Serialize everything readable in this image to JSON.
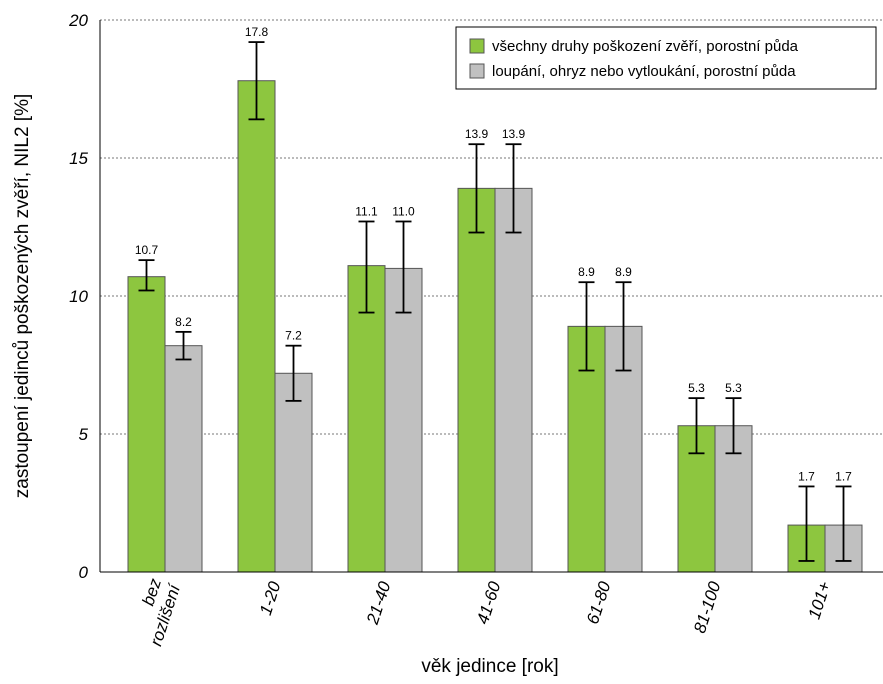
{
  "chart_data": {
    "type": "bar",
    "categories": [
      [
        "bez",
        "rozlišení"
      ],
      [
        "1-20"
      ],
      [
        "21-40"
      ],
      [
        "41-60"
      ],
      [
        "61-80"
      ],
      [
        "81-100"
      ],
      [
        "101+"
      ]
    ],
    "series": [
      {
        "name": "všechny druhy poškození zvěří, porostní půda",
        "color": "#8dc63f",
        "values": [
          10.7,
          17.8,
          11.1,
          13.9,
          8.9,
          5.3,
          1.7
        ],
        "labels": [
          "10.7",
          "17.8",
          "11.1",
          "13.9",
          "8.9",
          "5.3",
          "1.7"
        ],
        "err_low": [
          10.2,
          16.4,
          9.4,
          12.3,
          7.3,
          4.3,
          0.4
        ],
        "err_high": [
          11.3,
          19.2,
          12.7,
          15.5,
          10.5,
          6.3,
          3.1
        ]
      },
      {
        "name": "loupání, ohryz nebo vytloukání, porostní půda",
        "color": "#c0c0c0",
        "values": [
          8.2,
          7.2,
          11.0,
          13.9,
          8.9,
          5.3,
          1.7
        ],
        "labels": [
          "8.2",
          "7.2",
          "11.0",
          "13.9",
          "8.9",
          "5.3",
          "1.7"
        ],
        "err_low": [
          7.7,
          6.2,
          9.4,
          12.3,
          7.3,
          4.3,
          0.4
        ],
        "err_high": [
          8.7,
          8.2,
          12.7,
          15.5,
          10.5,
          6.3,
          3.1
        ]
      }
    ],
    "xlabel": "věk jedince [rok]",
    "ylabel": "zastoupení jedinců poškozených zvěří, NIL2 [%]",
    "ylim": [
      0,
      20
    ],
    "yticks": [
      "0",
      "5",
      "10",
      "15",
      "20"
    ],
    "grid": true,
    "legend_position": "top-right"
  }
}
